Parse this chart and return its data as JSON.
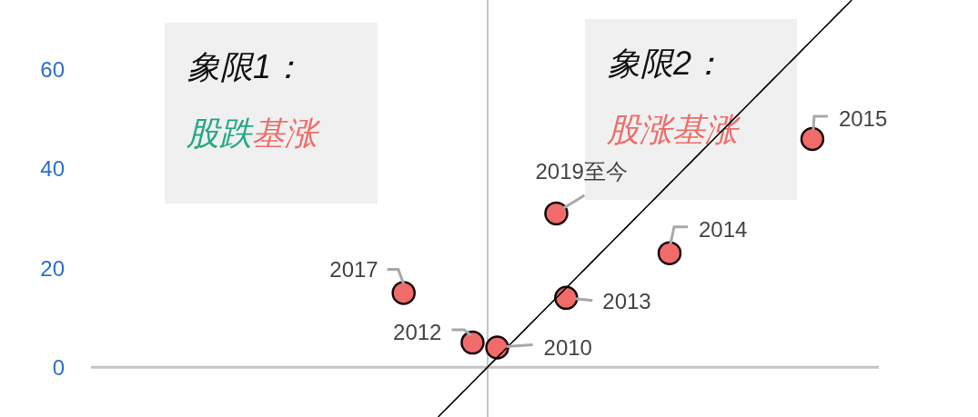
{
  "chart_data": {
    "type": "scatter",
    "categories": [
      null,
      null,
      null,
      null,
      null,
      null,
      null,
      null,
      null,
      null,
      null,
      null,
      null,
      null,
      null,
      null,
      null,
      null,
      null,
      null,
      null,
      null,
      null,
      null,
      null,
      null,
      null,
      null,
      null,
      null,
      null,
      null,
      null,
      null,
      null,
      null,
      null,
      null,
      null,
      null,
      null,
      null,
      null,
      null,
      null,
      null,
      null,
      null,
      null,
      null,
      null,
      null,
      null,
      null,
      null,
      null,
      null,
      null,
      null,
      null,
      null,
      null,
      null,
      null,
      null,
      null,
      null,
      null,
      null,
      null,
      null,
      null,
      null,
      null,
      null,
      null,
      null,
      null,
      null,
      null,
      null,
      null,
      null,
      null,
      null,
      null,
      null,
      null,
      null,
      null,
      null,
      null,
      null,
      null,
      null,
      null,
      null,
      null,
      null,
      null,
      null,
      null,
      null,
      null,
      null,
      null,
      null,
      null,
      null,
      null,
      null,
      null,
      null,
      null,
      null,
      null,
      null,
      null,
      null,
      null,
      null,
      null,
      null,
      null,
      null,
      null,
      null,
      null,
      null,
      null,
      null,
      null,
      null,
      null,
      null,
      null,
      null,
      null,
      null,
      null,
      null,
      null,
      null,
      null,
      null,
      null,
      null,
      null,
      null,
      null,
      null,
      null,
      null,
      null,
      null,
      null,
      null,
      null,
      null,
      null
    ],
    "series": [
      {
        "color": "#f26b6b",
        "marker": "circle",
        "values": [
          null,
          null,
          null,
          null,
          null,
          null,
          null,
          null,
          null,
          null,
          null,
          null,
          null,
          null,
          null,
          null,
          null,
          null,
          null,
          null,
          null,
          null,
          null,
          null,
          null,
          null,
          null,
          null,
          null,
          null,
          null,
          null,
          null,
          null,
          null,
          null,
          null,
          null,
          null,
          null,
          null,
          null,
          null,
          null,
          null,
          null,
          null,
          null,
          null,
          null,
          null,
          null,
          null,
          null,
          null,
          null,
          null,
          null,
          null,
          null,
          null,
          null,
          null,
          15,
          null,
          null,
          null,
          null,
          null,
          null,
          null,
          null,
          null,
          null,
          null,
          null,
          null,
          5,
          null,
          null,
          null,
          null,
          4,
          null,
          null,
          null,
          null,
          null,
          null,
          null,
          null,
          null,
          null,
          null,
          31,
          null,
          14,
          null,
          null,
          null,
          null,
          null,
          null,
          null,
          null,
          null,
          null,
          null,
          null,
          null,
          null,
          null,
          null,
          null,
          null,
          null,
          null,
          23,
          null,
          null,
          null,
          null,
          null,
          null,
          null,
          null,
          null,
          null,
          null,
          null,
          null,
          null,
          null,
          null,
          null,
          null,
          null,
          null,
          null,
          null,
          null,
          null,
          null,
          null,
          null,
          null,
          46,
          null,
          null,
          null,
          null,
          null,
          null,
          null,
          null,
          null,
          null,
          null,
          null,
          null
        ]
      },
      {
        "type": "line",
        "color": "#000000",
        "marker": "none",
        "values": [
          null,
          null,
          null,
          null,
          null,
          null,
          null,
          null,
          null,
          null,
          null,
          null,
          null,
          null,
          null,
          null,
          null,
          null,
          null,
          null,
          null,
          null,
          null,
          null,
          null,
          null,
          null,
          null,
          null,
          null,
          null,
          null,
          null,
          null,
          null,
          null,
          null,
          null,
          null,
          null,
          null,
          null,
          null,
          null,
          null,
          null,
          null,
          null,
          null,
          null,
          null,
          null,
          null,
          null,
          null,
          null,
          null,
          null,
          null,
          null,
          null,
          null,
          null,
          null,
          null,
          null,
          null,
          null,
          null,
          null,
          -10,
          -9,
          -8,
          -7,
          -6,
          -5,
          -4,
          -3,
          -2,
          -1,
          0,
          1,
          2,
          3,
          4,
          5,
          6,
          7,
          8,
          9,
          10,
          11,
          12,
          13,
          14,
          15,
          16,
          17,
          18,
          19,
          20,
          21,
          22,
          23,
          24,
          25,
          26,
          27,
          28,
          29,
          30,
          31,
          32,
          33,
          34,
          35,
          36,
          37,
          38,
          39,
          40,
          41,
          42,
          43,
          44,
          45,
          46,
          47,
          48,
          49,
          50,
          51,
          52,
          53,
          54,
          55,
          56,
          57,
          58,
          59,
          60,
          61,
          62,
          63,
          64,
          65,
          66,
          67,
          68,
          69,
          70,
          71,
          72,
          73,
          74,
          null,
          null,
          null,
          null,
          null
        ]
      }
    ],
    "ylim": [
      -10,
      74
    ],
    "yticks": [
      0,
      20,
      40,
      60
    ],
    "tick_labels": "y",
    "grid": false,
    "legend": false,
    "ref_lines": [
      {
        "axis": "y",
        "value": 0,
        "color": "#c4c4c4"
      }
    ],
    "annotations": [
      "象限1：",
      "股跌基涨",
      "象限2：",
      "股涨基涨",
      "2017",
      "2012",
      "2010",
      "2019至今",
      "2013",
      "2014",
      "2015"
    ]
  }
}
